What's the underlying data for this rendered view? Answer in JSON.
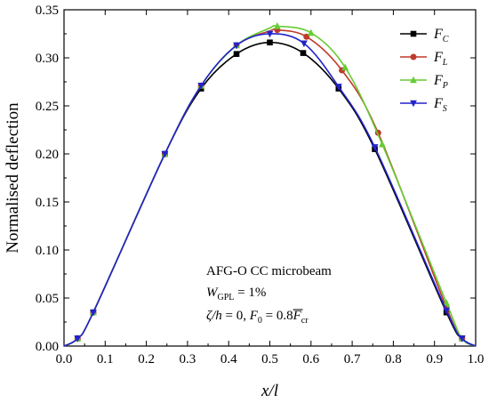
{
  "chart_data": {
    "type": "line",
    "xlabel": "x/l",
    "ylabel": "Normalised deflection",
    "xlim": [
      0.0,
      1.0
    ],
    "ylim": [
      0.0,
      0.35
    ],
    "xticks": [
      "0.0",
      "0.1",
      "0.2",
      "0.3",
      "0.4",
      "0.5",
      "0.6",
      "0.7",
      "0.8",
      "0.9",
      "1.0"
    ],
    "yticks": [
      "0.00",
      "0.05",
      "0.10",
      "0.15",
      "0.20",
      "0.25",
      "0.30",
      "0.35"
    ],
    "grid": false,
    "legend_position": "top-right",
    "series": [
      {
        "name": "FC",
        "label_main": "F",
        "label_sub": "C",
        "color": "#000000",
        "marker": "square",
        "x": [
          0,
          0.033,
          0.071,
          0.245,
          0.333,
          0.419,
          0.5,
          0.581,
          0.667,
          0.755,
          0.929,
          0.967,
          1.0
        ],
        "y": [
          0,
          0.008,
          0.035,
          0.2,
          0.268,
          0.304,
          0.316,
          0.305,
          0.268,
          0.205,
          0.035,
          0.008,
          0
        ],
        "markers_x": [
          0.033,
          0.071,
          0.245,
          0.333,
          0.419,
          0.5,
          0.581,
          0.667,
          0.755,
          0.929,
          0.967
        ],
        "markers_y": [
          0.008,
          0.035,
          0.2,
          0.268,
          0.304,
          0.316,
          0.305,
          0.268,
          0.205,
          0.035,
          0.008
        ]
      },
      {
        "name": "FL",
        "label_main": "F",
        "label_sub": "L",
        "color": "#c0392b",
        "marker": "circle",
        "x": [
          0,
          0.033,
          0.071,
          0.245,
          0.333,
          0.419,
          0.5,
          0.518,
          0.589,
          0.675,
          0.763,
          0.929,
          0.967,
          1.0
        ],
        "y": [
          0,
          0.008,
          0.035,
          0.2,
          0.271,
          0.313,
          0.328,
          0.329,
          0.322,
          0.287,
          0.222,
          0.04,
          0.008,
          0
        ],
        "markers_x": [
          0.033,
          0.071,
          0.245,
          0.333,
          0.419,
          0.518,
          0.589,
          0.675,
          0.763,
          0.929,
          0.967
        ],
        "markers_y": [
          0.008,
          0.035,
          0.2,
          0.271,
          0.313,
          0.329,
          0.322,
          0.287,
          0.222,
          0.04,
          0.008
        ]
      },
      {
        "name": "FP",
        "label_main": "F",
        "label_sub": "P",
        "color": "#66cc33",
        "marker": "triangle-up",
        "x": [
          0,
          0.033,
          0.071,
          0.245,
          0.333,
          0.419,
          0.5,
          0.518,
          0.6,
          0.683,
          0.773,
          0.929,
          0.967,
          1.0
        ],
        "y": [
          0,
          0.008,
          0.035,
          0.2,
          0.271,
          0.313,
          0.331,
          0.333,
          0.326,
          0.29,
          0.21,
          0.045,
          0.008,
          0
        ],
        "markers_x": [
          0.033,
          0.071,
          0.245,
          0.333,
          0.419,
          0.518,
          0.6,
          0.683,
          0.773,
          0.929,
          0.967
        ],
        "markers_y": [
          0.008,
          0.035,
          0.2,
          0.271,
          0.313,
          0.333,
          0.326,
          0.29,
          0.21,
          0.045,
          0.008
        ]
      },
      {
        "name": "FS",
        "label_main": "F",
        "label_sub": "S",
        "color": "#2222cc",
        "marker": "triangle-down",
        "x": [
          0,
          0.033,
          0.071,
          0.245,
          0.333,
          0.419,
          0.5,
          0.583,
          0.667,
          0.755,
          0.929,
          0.967,
          1.0
        ],
        "y": [
          0,
          0.008,
          0.035,
          0.2,
          0.271,
          0.313,
          0.325,
          0.315,
          0.27,
          0.207,
          0.037,
          0.008,
          0
        ],
        "markers_x": [
          0.033,
          0.071,
          0.245,
          0.333,
          0.419,
          0.5,
          0.583,
          0.667,
          0.755,
          0.929,
          0.967
        ],
        "markers_y": [
          0.008,
          0.035,
          0.2,
          0.271,
          0.313,
          0.325,
          0.315,
          0.27,
          0.207,
          0.037,
          0.008
        ]
      }
    ],
    "annotations": {
      "line1": "AFG-O CC microbeam",
      "line2_main": "W",
      "line2_sub": "GPL",
      "line2_rest": " = 1%",
      "line3_a": "ζ/h",
      "line3_b": " = 0, ",
      "line3_c": "F",
      "line3_sub0": "0",
      "line3_d": " = 0.8",
      "line3_e": "F",
      "line3_sub_cr": "cr"
    }
  }
}
